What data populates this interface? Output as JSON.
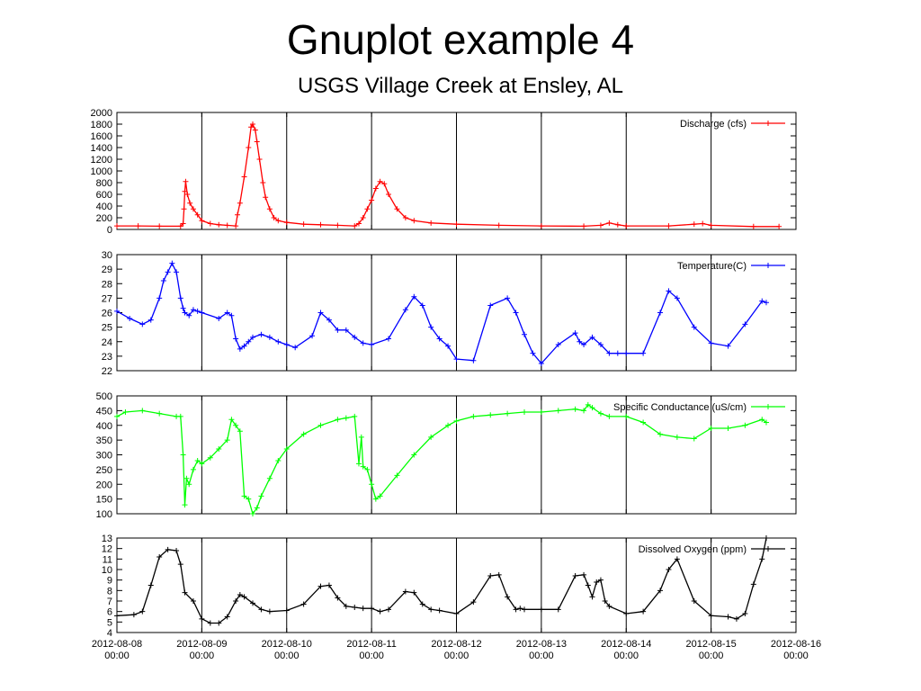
{
  "page": {
    "title": "Gnuplot example 4",
    "subtitle": "USGS Village Creek at Ensley, AL"
  },
  "chart_data": [
    {
      "type": "line",
      "series": [
        {
          "name": "Discharge (cfs)",
          "color": "#ff0000",
          "x": [
            0,
            0.25,
            0.5,
            0.75,
            0.78,
            0.79,
            0.8,
            0.81,
            0.83,
            0.86,
            0.9,
            0.95,
            1.0,
            1.1,
            1.2,
            1.3,
            1.4,
            1.42,
            1.45,
            1.5,
            1.55,
            1.58,
            1.6,
            1.63,
            1.65,
            1.68,
            1.72,
            1.75,
            1.8,
            1.85,
            1.9,
            2.0,
            2.2,
            2.4,
            2.6,
            2.8,
            2.85,
            2.9,
            2.95,
            3.0,
            3.05,
            3.1,
            3.15,
            3.2,
            3.3,
            3.4,
            3.5,
            3.7,
            4.0,
            4.5,
            5.0,
            5.5,
            5.7,
            5.8,
            5.9,
            6.0,
            6.5,
            6.8,
            6.9,
            7.0,
            7.5,
            7.8
          ],
          "values": [
            60,
            60,
            55,
            55,
            100,
            350,
            650,
            820,
            600,
            450,
            350,
            250,
            150,
            100,
            80,
            70,
            60,
            250,
            450,
            900,
            1400,
            1750,
            1800,
            1700,
            1500,
            1200,
            800,
            550,
            350,
            200,
            150,
            120,
            90,
            80,
            70,
            60,
            100,
            200,
            350,
            500,
            700,
            820,
            780,
            600,
            350,
            200,
            150,
            110,
            90,
            70,
            60,
            55,
            70,
            110,
            80,
            60,
            60,
            90,
            100,
            70,
            50,
            50
          ]
        }
      ],
      "ylim": [
        0,
        2000
      ],
      "yticks": [
        "0",
        "200",
        "400",
        "600",
        "800",
        "1000",
        "1200",
        "1400",
        "1600",
        "1800",
        "2000"
      ]
    },
    {
      "type": "line",
      "series": [
        {
          "name": "Temperature(C)",
          "color": "#0000ff",
          "x": [
            0,
            0.15,
            0.3,
            0.4,
            0.5,
            0.55,
            0.6,
            0.65,
            0.7,
            0.75,
            0.78,
            0.8,
            0.85,
            0.9,
            0.95,
            1.0,
            1.2,
            1.3,
            1.35,
            1.4,
            1.45,
            1.5,
            1.55,
            1.6,
            1.7,
            1.8,
            1.9,
            2.0,
            2.1,
            2.3,
            2.4,
            2.5,
            2.6,
            2.7,
            2.8,
            2.9,
            3.0,
            3.2,
            3.4,
            3.5,
            3.6,
            3.7,
            3.8,
            3.9,
            4.0,
            4.2,
            4.4,
            4.6,
            4.7,
            4.8,
            4.9,
            5.0,
            5.2,
            5.4,
            5.45,
            5.5,
            5.6,
            5.7,
            5.8,
            5.9,
            6.0,
            6.2,
            6.4,
            6.5,
            6.6,
            6.8,
            7.0,
            7.2,
            7.4,
            7.6,
            7.65
          ],
          "values": [
            26.1,
            25.6,
            25.2,
            25.5,
            27.0,
            28.2,
            28.8,
            29.4,
            28.8,
            27.0,
            26.3,
            26.0,
            25.8,
            26.2,
            26.1,
            26.0,
            25.6,
            26.0,
            25.8,
            24.2,
            23.5,
            23.7,
            24.0,
            24.3,
            24.5,
            24.3,
            24.0,
            23.8,
            23.6,
            24.4,
            26.0,
            25.5,
            24.8,
            24.8,
            24.3,
            23.9,
            23.8,
            24.2,
            26.2,
            27.1,
            26.5,
            25.0,
            24.2,
            23.7,
            22.8,
            22.7,
            26.5,
            27.0,
            26.0,
            24.5,
            23.2,
            22.5,
            23.8,
            24.6,
            24.0,
            23.8,
            24.3,
            23.8,
            23.2,
            23.2,
            23.2,
            23.2,
            26.0,
            27.5,
            27.0,
            25.0,
            23.9,
            23.7,
            25.2,
            26.8,
            26.7
          ]
        }
      ],
      "ylim": [
        22,
        30
      ],
      "yticks": [
        "22",
        "23",
        "24",
        "25",
        "26",
        "27",
        "28",
        "29",
        "30"
      ]
    },
    {
      "type": "line",
      "series": [
        {
          "name": "Specific Conductance (uS/cm)",
          "color": "#00ff00",
          "x": [
            0,
            0.1,
            0.3,
            0.5,
            0.7,
            0.75,
            0.78,
            0.8,
            0.82,
            0.85,
            0.9,
            0.95,
            1.0,
            1.1,
            1.2,
            1.3,
            1.35,
            1.4,
            1.45,
            1.5,
            1.55,
            1.6,
            1.65,
            1.7,
            1.8,
            1.9,
            2.0,
            2.2,
            2.4,
            2.6,
            2.7,
            2.8,
            2.85,
            2.88,
            2.9,
            2.95,
            3.0,
            3.05,
            3.1,
            3.3,
            3.5,
            3.7,
            3.9,
            4.0,
            4.2,
            4.4,
            4.6,
            4.8,
            5.0,
            5.2,
            5.4,
            5.5,
            5.55,
            5.6,
            5.7,
            5.8,
            6.0,
            6.2,
            6.4,
            6.6,
            6.8,
            7.0,
            7.2,
            7.4,
            7.6,
            7.65
          ],
          "values": [
            430,
            445,
            450,
            440,
            430,
            430,
            300,
            130,
            220,
            200,
            250,
            280,
            270,
            290,
            320,
            350,
            420,
            400,
            380,
            160,
            150,
            100,
            120,
            160,
            220,
            280,
            320,
            370,
            400,
            420,
            425,
            430,
            270,
            360,
            260,
            250,
            200,
            150,
            160,
            230,
            300,
            360,
            400,
            415,
            430,
            435,
            440,
            445,
            445,
            450,
            455,
            450,
            470,
            460,
            440,
            430,
            430,
            410,
            370,
            360,
            355,
            390,
            390,
            400,
            420,
            410
          ]
        }
      ],
      "ylim": [
        100,
        500
      ],
      "yticks": [
        "100",
        "150",
        "200",
        "250",
        "300",
        "350",
        "400",
        "450",
        "500"
      ]
    },
    {
      "type": "line",
      "series": [
        {
          "name": "Dissolved Oxygen (ppm)",
          "color": "#000000",
          "x": [
            0,
            0.2,
            0.3,
            0.4,
            0.5,
            0.6,
            0.7,
            0.75,
            0.8,
            0.9,
            1.0,
            1.1,
            1.2,
            1.3,
            1.4,
            1.45,
            1.5,
            1.6,
            1.7,
            1.8,
            2.0,
            2.2,
            2.4,
            2.5,
            2.6,
            2.7,
            2.8,
            2.9,
            3.0,
            3.1,
            3.2,
            3.4,
            3.5,
            3.6,
            3.7,
            3.8,
            4.0,
            4.2,
            4.4,
            4.5,
            4.6,
            4.7,
            4.75,
            4.8,
            5.0,
            5.2,
            5.4,
            5.5,
            5.55,
            5.6,
            5.65,
            5.7,
            5.75,
            5.8,
            6.0,
            6.2,
            6.4,
            6.5,
            6.6,
            6.8,
            7.0,
            7.2,
            7.3,
            7.4,
            7.5,
            7.6,
            7.65
          ],
          "values": [
            5.6,
            5.7,
            6.0,
            8.5,
            11.2,
            11.9,
            11.8,
            10.5,
            7.8,
            7.0,
            5.3,
            4.9,
            4.9,
            5.5,
            7.0,
            7.6,
            7.4,
            6.8,
            6.2,
            6.0,
            6.1,
            6.7,
            8.4,
            8.5,
            7.3,
            6.5,
            6.4,
            6.3,
            6.3,
            6.0,
            6.2,
            7.9,
            7.8,
            6.7,
            6.2,
            6.1,
            5.8,
            6.9,
            9.4,
            9.5,
            7.4,
            6.2,
            6.3,
            6.2,
            6.2,
            6.2,
            9.4,
            9.5,
            8.5,
            7.4,
            8.8,
            9.0,
            7.0,
            6.5,
            5.8,
            6.0,
            8.0,
            10.0,
            11.0,
            7.0,
            5.6,
            5.5,
            5.3,
            5.8,
            8.6,
            11.0,
            13.0
          ]
        }
      ],
      "ylim": [
        4,
        13
      ],
      "yticks": [
        "4",
        "5",
        "6",
        "7",
        "8",
        "9",
        "10",
        "11",
        "12",
        "13"
      ]
    }
  ],
  "x_axis": {
    "ticks": [
      {
        "date": "2012-08-08",
        "time": "00:00"
      },
      {
        "date": "2012-08-09",
        "time": "00:00"
      },
      {
        "date": "2012-08-10",
        "time": "00:00"
      },
      {
        "date": "2012-08-11",
        "time": "00:00"
      },
      {
        "date": "2012-08-12",
        "time": "00:00"
      },
      {
        "date": "2012-08-13",
        "time": "00:00"
      },
      {
        "date": "2012-08-14",
        "time": "00:00"
      },
      {
        "date": "2012-08-15",
        "time": "00:00"
      },
      {
        "date": "2012-08-16",
        "time": "00:00"
      }
    ],
    "xlim": [
      "2012-08-08 00:00",
      "2012-08-16 00:00"
    ],
    "grid": "vertical lines at each day"
  }
}
